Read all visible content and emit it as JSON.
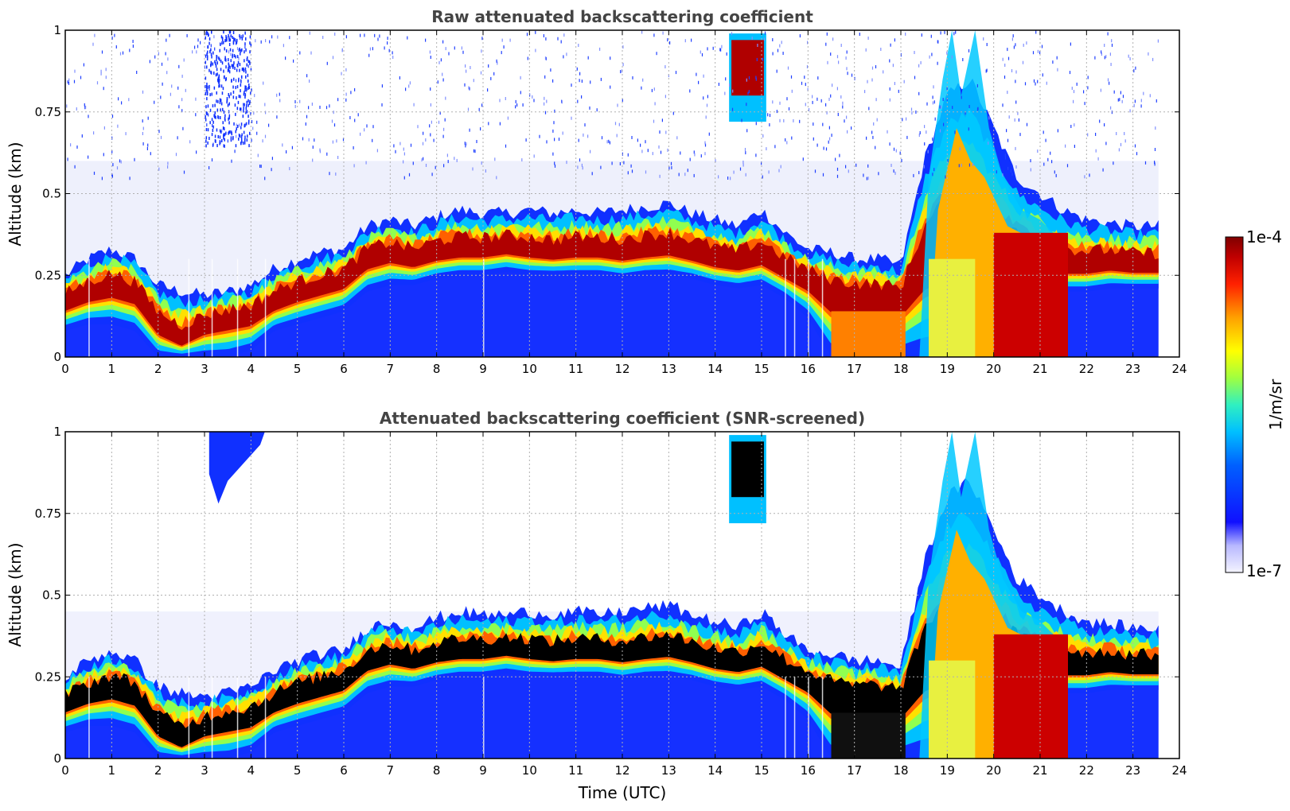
{
  "chart_data": [
    {
      "type": "heatmap",
      "title": "Raw attenuated backscattering coefficient",
      "xlabel": "",
      "ylabel": "Altitude (km)",
      "xlim": [
        0,
        24
      ],
      "ylim": [
        0,
        1
      ],
      "x_ticks": [
        "0",
        "1",
        "2",
        "3",
        "4",
        "5",
        "6",
        "7",
        "8",
        "9",
        "10",
        "11",
        "12",
        "13",
        "14",
        "15",
        "16",
        "17",
        "18",
        "19",
        "20",
        "21",
        "22",
        "23",
        "24"
      ],
      "y_ticks": [
        "0",
        "0.25",
        "0.5",
        "0.75",
        "1"
      ],
      "grid": true,
      "data_end_time": 23.55,
      "layer_profile": {
        "time": [
          0,
          0.5,
          1,
          1.5,
          2,
          2.5,
          3,
          3.5,
          4,
          4.5,
          5,
          5.5,
          6,
          6.5,
          7,
          7.5,
          8,
          8.5,
          9,
          9.5,
          10,
          10.5,
          11,
          11.5,
          12,
          12.5,
          13,
          13.5,
          14,
          14.5,
          15,
          15.5,
          16,
          16.5,
          17,
          17.5,
          18,
          18.5,
          19,
          19.5,
          20,
          20.5,
          21,
          21.5,
          22,
          22.5,
          23,
          23.5
        ],
        "layer_top_km": [
          0.25,
          0.3,
          0.33,
          0.3,
          0.22,
          0.2,
          0.19,
          0.2,
          0.22,
          0.27,
          0.3,
          0.32,
          0.33,
          0.4,
          0.42,
          0.4,
          0.43,
          0.45,
          0.44,
          0.44,
          0.45,
          0.44,
          0.45,
          0.44,
          0.45,
          0.46,
          0.47,
          0.44,
          0.42,
          0.4,
          0.45,
          0.38,
          0.33,
          0.32,
          0.3,
          0.3,
          0.28,
          0.6,
          0.8,
          0.85,
          0.7,
          0.55,
          0.5,
          0.45,
          0.42,
          0.41,
          0.4,
          0.4
        ],
        "layer_center_km": [
          0.17,
          0.2,
          0.22,
          0.2,
          0.1,
          0.05,
          0.1,
          0.12,
          0.13,
          0.17,
          0.2,
          0.22,
          0.24,
          0.3,
          0.32,
          0.3,
          0.32,
          0.33,
          0.33,
          0.34,
          0.33,
          0.32,
          0.33,
          0.33,
          0.32,
          0.33,
          0.34,
          0.32,
          0.3,
          0.29,
          0.31,
          0.27,
          0.24,
          0.2,
          0.19,
          0.19,
          0.18,
          0.3,
          0.35,
          0.35,
          0.3,
          0.3,
          0.28,
          0.28,
          0.28,
          0.29,
          0.28,
          0.28
        ],
        "layer_bottom_km": [
          0.08,
          0.1,
          0.1,
          0.08,
          0.0,
          0.0,
          0.0,
          0.0,
          0.02,
          0.08,
          0.1,
          0.12,
          0.14,
          0.2,
          0.22,
          0.22,
          0.24,
          0.25,
          0.25,
          0.26,
          0.25,
          0.25,
          0.25,
          0.25,
          0.24,
          0.25,
          0.25,
          0.24,
          0.22,
          0.21,
          0.22,
          0.18,
          0.12,
          0.0,
          0.0,
          0.0,
          0.0,
          0.0,
          0.0,
          0.0,
          0.0,
          0.0,
          0.0,
          0.2,
          0.2,
          0.21,
          0.21,
          0.21
        ]
      },
      "elevated_layer": {
        "time_start": 14.3,
        "time_end": 15.1,
        "bottom_km": 0.8,
        "top_km": 0.97
      }
    },
    {
      "type": "heatmap",
      "title": "Attenuated backscattering coefficient (SNR-screened)",
      "xlabel": "Time (UTC)",
      "ylabel": "Altitude (km)",
      "xlim": [
        0,
        24
      ],
      "ylim": [
        0,
        1
      ],
      "x_ticks": [
        "0",
        "1",
        "2",
        "3",
        "4",
        "5",
        "6",
        "7",
        "8",
        "9",
        "10",
        "11",
        "12",
        "13",
        "14",
        "15",
        "16",
        "17",
        "18",
        "19",
        "20",
        "21",
        "22",
        "23",
        "24"
      ],
      "y_ticks": [
        "0",
        "0.25",
        "0.5",
        "0.75",
        "1"
      ],
      "grid": true,
      "saturated_color": "#000000"
    }
  ],
  "colorbar": {
    "label": "1/m/sr",
    "max_label": "1e-4",
    "min_label": "1e-7",
    "scale": "log",
    "range": [
      1e-07,
      0.0001
    ],
    "colors": [
      "#e8e8fb",
      "#1010ff",
      "#00a0ff",
      "#20f0d0",
      "#a0ff40",
      "#ffff00",
      "#ff9000",
      "#ff2000",
      "#c00000",
      "#800000"
    ]
  },
  "colors": {
    "background_fill": "#e4e6fb",
    "near_surface": "#1428ff",
    "layer_core": "#9b0000",
    "title_gray": "#444444"
  }
}
